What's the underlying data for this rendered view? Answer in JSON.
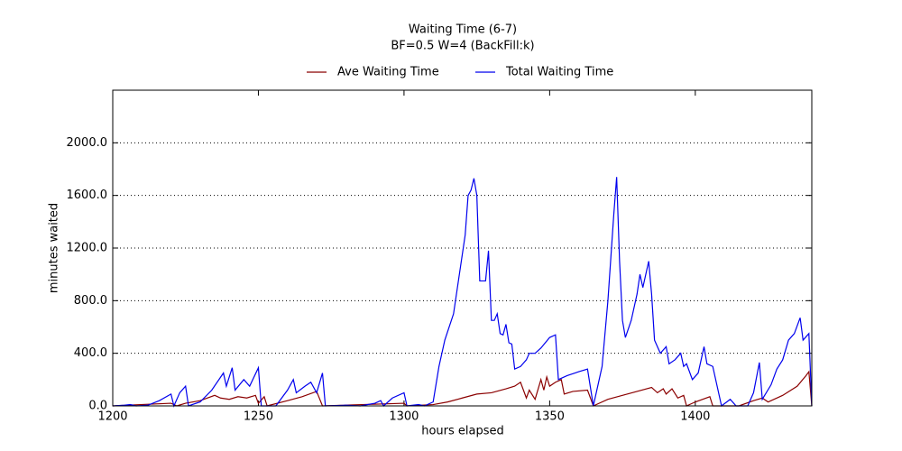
{
  "chart_data": {
    "type": "line",
    "title": "Waiting Time (6-7)",
    "subtitle": "BF=0.5   W=4   (BackFill:k)",
    "x_label": "hours elapsed",
    "y_label": "minutes waited",
    "xlim": [
      1200,
      1440
    ],
    "xticks": [
      1200,
      1250,
      1300,
      1350,
      1400
    ],
    "ylim": [
      0,
      2400
    ],
    "yticks": [
      {
        "value": 0,
        "label": "0.0"
      },
      {
        "value": 400,
        "label": "400.0"
      },
      {
        "value": 800,
        "label": "800.0"
      },
      {
        "value": 1200,
        "label": "1200.0"
      },
      {
        "value": 1600,
        "label": "1600.0"
      },
      {
        "value": 2000,
        "label": "2000.0"
      }
    ],
    "grid": "y",
    "legend": "top",
    "series": [
      {
        "name": "Ave Waiting Time",
        "color": "#8b0000",
        "x": [
          1200,
          1220,
          1222,
          1225,
          1230,
          1235,
          1237,
          1240,
          1243,
          1246,
          1249,
          1250,
          1252,
          1253,
          1260,
          1265,
          1270,
          1272,
          1300,
          1301,
          1310,
          1315,
          1320,
          1325,
          1330,
          1335,
          1338,
          1340,
          1342,
          1343,
          1345,
          1347,
          1348,
          1349,
          1350,
          1352,
          1354,
          1355,
          1358,
          1363,
          1365,
          1370,
          1375,
          1380,
          1385,
          1387,
          1389,
          1390,
          1392,
          1394,
          1396,
          1397,
          1400,
          1405,
          1406,
          1415,
          1420,
          1423,
          1425,
          1430,
          1435,
          1438,
          1439,
          1440
        ],
        "values": [
          0,
          20,
          0,
          20,
          40,
          80,
          60,
          50,
          70,
          60,
          80,
          20,
          70,
          0,
          40,
          70,
          110,
          0,
          20,
          0,
          10,
          30,
          60,
          90,
          100,
          130,
          150,
          180,
          60,
          120,
          50,
          200,
          120,
          220,
          150,
          180,
          200,
          90,
          110,
          120,
          0,
          50,
          80,
          110,
          140,
          100,
          130,
          90,
          130,
          60,
          80,
          0,
          30,
          70,
          0,
          0,
          40,
          60,
          30,
          80,
          150,
          230,
          260,
          0
        ]
      },
      {
        "name": "Total Waiting Time",
        "color": "#0000ee",
        "x": [
          1200,
          1204,
          1206,
          1208,
          1212,
          1216,
          1220,
          1221,
          1223,
          1225,
          1226,
          1230,
          1234,
          1238,
          1239,
          1241,
          1242,
          1245,
          1247,
          1250,
          1251,
          1256,
          1260,
          1262,
          1263,
          1266,
          1268,
          1270,
          1272,
          1273,
          1280,
          1285,
          1290,
          1292,
          1293,
          1296,
          1300,
          1301,
          1305,
          1307,
          1310,
          1312,
          1314,
          1317,
          1319,
          1321,
          1322,
          1323,
          1324,
          1325,
          1326,
          1328,
          1329,
          1330,
          1331,
          1332,
          1333,
          1334,
          1335,
          1336,
          1337,
          1338,
          1340,
          1342,
          1343,
          1345,
          1347,
          1350,
          1352,
          1353,
          1356,
          1360,
          1363,
          1365,
          1368,
          1370,
          1372,
          1373,
          1374,
          1375,
          1376,
          1378,
          1380,
          1381,
          1382,
          1384,
          1385,
          1386,
          1388,
          1390,
          1391,
          1393,
          1395,
          1396,
          1397,
          1399,
          1401,
          1403,
          1404,
          1406,
          1409,
          1412,
          1414,
          1418,
          1420,
          1422,
          1423,
          1426,
          1428,
          1430,
          1432,
          1434,
          1436,
          1437,
          1439,
          1440
        ],
        "values": [
          0,
          5,
          10,
          0,
          5,
          40,
          90,
          0,
          100,
          150,
          0,
          30,
          120,
          250,
          150,
          290,
          120,
          200,
          150,
          290,
          0,
          0,
          120,
          200,
          100,
          150,
          180,
          100,
          250,
          0,
          5,
          0,
          20,
          40,
          0,
          60,
          100,
          0,
          10,
          0,
          30,
          300,
          500,
          700,
          1000,
          1300,
          1600,
          1640,
          1730,
          1600,
          950,
          950,
          1180,
          650,
          650,
          700,
          550,
          540,
          620,
          480,
          470,
          280,
          300,
          350,
          400,
          400,
          440,
          520,
          540,
          200,
          230,
          260,
          280,
          0,
          300,
          800,
          1450,
          1740,
          1100,
          650,
          520,
          650,
          850,
          1000,
          900,
          1100,
          850,
          500,
          400,
          450,
          320,
          350,
          400,
          300,
          320,
          200,
          250,
          450,
          320,
          300,
          0,
          50,
          0,
          0,
          100,
          330,
          50,
          160,
          280,
          350,
          500,
          550,
          670,
          500,
          550,
          0
        ]
      }
    ]
  }
}
